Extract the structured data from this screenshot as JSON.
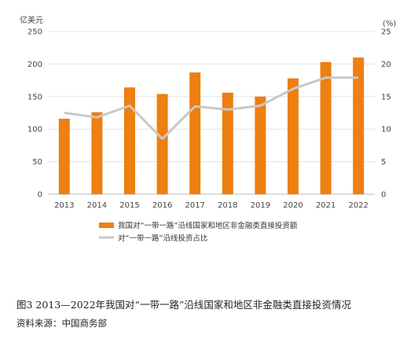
{
  "chart_data": {
    "type": "bar",
    "categories": [
      "2013",
      "2014",
      "2015",
      "2016",
      "2017",
      "2018",
      "2019",
      "2020",
      "2021",
      "2022"
    ],
    "series": [
      {
        "name": "我国对“一带一路”沿线国家和地区非金融类直接投资额",
        "kind": "bar",
        "axis": "left",
        "color": "#EE7F11",
        "values": [
          116,
          126,
          164,
          154,
          187,
          156,
          150,
          178,
          203,
          210
        ]
      },
      {
        "name": "对“一带一路”沿线投资占比",
        "kind": "line",
        "axis": "right",
        "color": "#C8C8C8",
        "values": [
          12.5,
          11.8,
          13.6,
          8.5,
          13.5,
          13.0,
          13.6,
          16.2,
          17.9,
          17.9
        ]
      }
    ],
    "y_left": {
      "unit": "亿美元",
      "ylim": [
        0,
        250
      ],
      "ticks": [
        "0",
        "50",
        "100",
        "150",
        "200",
        "250"
      ]
    },
    "y_right": {
      "unit": "(%)",
      "ylim": [
        0,
        25
      ],
      "ticks": [
        "0",
        "5",
        "10",
        "15",
        "20",
        "25"
      ]
    },
    "grid": true,
    "legend_position": "bottom"
  },
  "caption": "图3  2013—2022年我国对“一带一路”沿线国家和地区非金融类直接投资情况",
  "source": "资料来源：中国商务部"
}
